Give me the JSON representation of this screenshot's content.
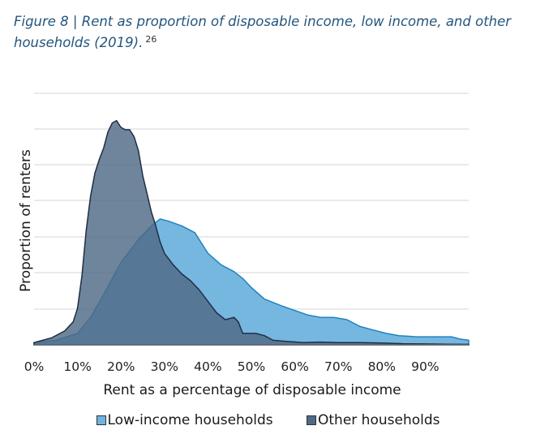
{
  "title": "Figure 8 | Rent as proportion of disposable income, low income, and other households (2019).",
  "footnote": "26",
  "chart_data": {
    "type": "area",
    "xlabel": "Rent as a percentage of disposable income",
    "ylabel": "Proportion of renters",
    "xlim": [
      0,
      100
    ],
    "ylim": [
      0,
      1
    ],
    "grid": true,
    "legend_position": "bottom",
    "x_ticks": [
      "0%",
      "10%",
      "20%",
      "30%",
      "40%",
      "50%",
      "60%",
      "70%",
      "80%",
      "90%"
    ],
    "x_tick_values": [
      0,
      10,
      20,
      30,
      40,
      50,
      60,
      70,
      80,
      90
    ],
    "series": [
      {
        "name": "Low-income households",
        "color": "#6fb3de",
        "stroke": "#1f82c0",
        "points": [
          [
            0,
            0.01
          ],
          [
            5,
            0.02
          ],
          [
            10,
            0.05
          ],
          [
            13,
            0.12
          ],
          [
            16,
            0.22
          ],
          [
            20,
            0.36
          ],
          [
            24,
            0.46
          ],
          [
            27,
            0.52
          ],
          [
            29,
            0.55
          ],
          [
            31,
            0.54
          ],
          [
            34,
            0.52
          ],
          [
            37,
            0.49
          ],
          [
            40,
            0.4
          ],
          [
            43,
            0.35
          ],
          [
            46,
            0.32
          ],
          [
            48,
            0.29
          ],
          [
            50,
            0.25
          ],
          [
            53,
            0.2
          ],
          [
            57,
            0.17
          ],
          [
            60,
            0.15
          ],
          [
            63,
            0.13
          ],
          [
            66,
            0.12
          ],
          [
            69,
            0.12
          ],
          [
            72,
            0.11
          ],
          [
            75,
            0.08
          ],
          [
            78,
            0.065
          ],
          [
            81,
            0.05
          ],
          [
            84,
            0.04
          ],
          [
            88,
            0.035
          ],
          [
            92,
            0.035
          ],
          [
            96,
            0.035
          ],
          [
            98,
            0.025
          ],
          [
            100,
            0.02
          ]
        ]
      },
      {
        "name": "Other households",
        "color": "#4f6a85",
        "stroke": "#1f2f44",
        "points": [
          [
            0,
            0.01
          ],
          [
            4,
            0.03
          ],
          [
            7,
            0.06
          ],
          [
            9,
            0.1
          ],
          [
            10,
            0.16
          ],
          [
            11,
            0.3
          ],
          [
            12,
            0.5
          ],
          [
            13,
            0.65
          ],
          [
            14,
            0.75
          ],
          [
            15,
            0.81
          ],
          [
            16,
            0.86
          ],
          [
            17,
            0.93
          ],
          [
            18,
            0.97
          ],
          [
            19,
            0.98
          ],
          [
            20,
            0.95
          ],
          [
            21,
            0.94
          ],
          [
            22,
            0.94
          ],
          [
            23,
            0.91
          ],
          [
            24,
            0.85
          ],
          [
            25,
            0.74
          ],
          [
            26,
            0.66
          ],
          [
            27,
            0.58
          ],
          [
            28,
            0.52
          ],
          [
            29,
            0.45
          ],
          [
            30,
            0.4
          ],
          [
            32,
            0.35
          ],
          [
            34,
            0.31
          ],
          [
            36,
            0.28
          ],
          [
            38,
            0.24
          ],
          [
            40,
            0.19
          ],
          [
            42,
            0.14
          ],
          [
            44,
            0.11
          ],
          [
            46,
            0.12
          ],
          [
            47,
            0.1
          ],
          [
            48,
            0.05
          ],
          [
            50,
            0.05
          ],
          [
            51,
            0.05
          ],
          [
            53,
            0.04
          ],
          [
            55,
            0.02
          ],
          [
            58,
            0.015
          ],
          [
            62,
            0.01
          ],
          [
            66,
            0.012
          ],
          [
            70,
            0.01
          ],
          [
            75,
            0.01
          ],
          [
            80,
            0.008
          ],
          [
            85,
            0.005
          ],
          [
            90,
            0.004
          ],
          [
            95,
            0.003
          ],
          [
            100,
            0.002
          ]
        ]
      }
    ]
  }
}
